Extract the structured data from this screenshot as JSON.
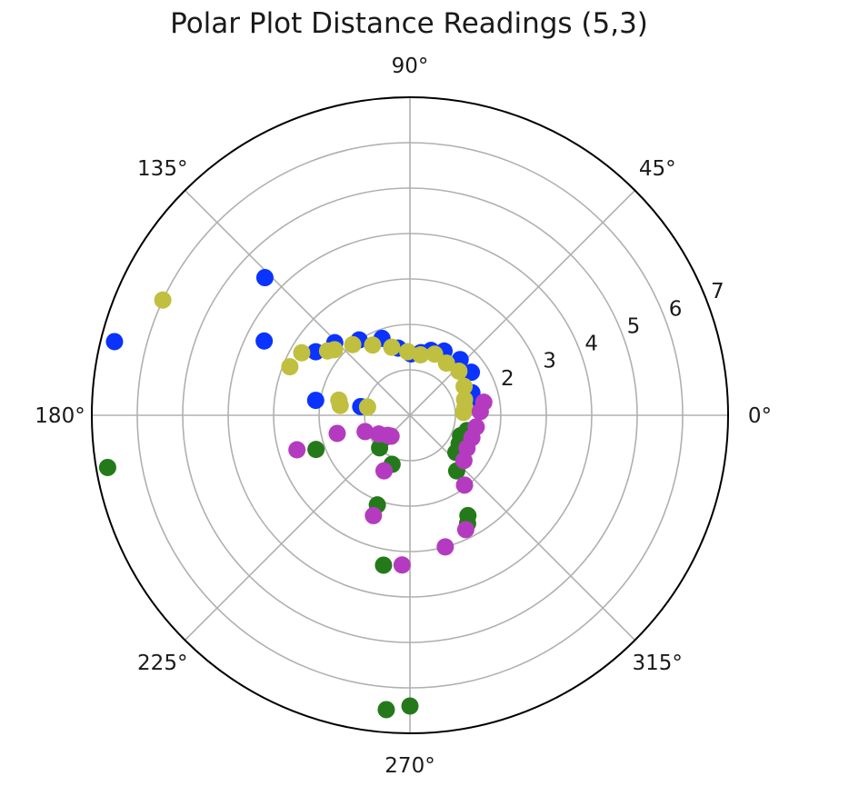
{
  "chart_data": {
    "type": "scatter",
    "projection": "polar",
    "title": "Polar Plot Distance Readings (5,3)",
    "theta_unit": "degrees",
    "r_range": [
      0,
      7
    ],
    "r_ticks": [
      2,
      3,
      4,
      5,
      6,
      7
    ],
    "r_tick_labels": [
      "2",
      "3",
      "4",
      "5",
      "6",
      "7"
    ],
    "r_tick_label_angle_deg": 22.5,
    "theta_ticks": [
      0,
      45,
      90,
      135,
      180,
      225,
      270,
      315
    ],
    "theta_tick_labels": [
      "0°",
      "45°",
      "90°",
      "135°",
      "180°",
      "225°",
      "270°",
      "315°"
    ],
    "grid": true,
    "legend": "none",
    "series": [
      {
        "color": "#0a33ff",
        "points": [
          {
            "theta": 136.5,
            "r": 4.4
          },
          {
            "theta": 166,
            "r": 6.7
          },
          {
            "theta": 153,
            "r": 3.6
          },
          {
            "theta": 146,
            "r": 2.5
          },
          {
            "theta": 136,
            "r": 2.3
          },
          {
            "theta": 124,
            "r": 2.0
          },
          {
            "theta": 110,
            "r": 1.8
          },
          {
            "theta": 100,
            "r": 1.5
          },
          {
            "theta": 89,
            "r": 1.35
          },
          {
            "theta": 80,
            "r": 1.4
          },
          {
            "theta": 72,
            "r": 1.5
          },
          {
            "theta": 62,
            "r": 1.6
          },
          {
            "theta": 48,
            "r": 1.65
          },
          {
            "theta": 35,
            "r": 1.65
          },
          {
            "theta": 20,
            "r": 1.45
          },
          {
            "theta": 10,
            "r": 1.35
          },
          {
            "theta": 171,
            "r": 2.1
          },
          {
            "theta": 170,
            "r": 1.1
          }
        ]
      },
      {
        "color": "#c0bf3f",
        "points": [
          {
            "theta": 155,
            "r": 6.0
          },
          {
            "theta": 150,
            "r": 2.75
          },
          {
            "theta": 158,
            "r": 2.85
          },
          {
            "theta": 142,
            "r": 2.3
          },
          {
            "theta": 139,
            "r": 2.2
          },
          {
            "theta": 129,
            "r": 2.0
          },
          {
            "theta": 118,
            "r": 1.75
          },
          {
            "theta": 105,
            "r": 1.55
          },
          {
            "theta": 92,
            "r": 1.4
          },
          {
            "theta": 80,
            "r": 1.35
          },
          {
            "theta": 68,
            "r": 1.45
          },
          {
            "theta": 55,
            "r": 1.4
          },
          {
            "theta": 42,
            "r": 1.45
          },
          {
            "theta": 28,
            "r": 1.35
          },
          {
            "theta": 16,
            "r": 1.25
          },
          {
            "theta": 8,
            "r": 1.22
          },
          {
            "theta": 3,
            "r": 1.18
          },
          {
            "theta": 172,
            "r": 1.55
          },
          {
            "theta": 168,
            "r": 1.6
          },
          {
            "theta": 169,
            "r": 0.95
          }
        ]
      },
      {
        "color": "#247a1a",
        "points": [
          {
            "theta": 189.8,
            "r": 6.75
          },
          {
            "theta": 265.4,
            "r": 6.5
          },
          {
            "theta": 270,
            "r": 6.4
          },
          {
            "theta": 260,
            "r": 3.35
          },
          {
            "theta": 250,
            "r": 2.1
          },
          {
            "theta": 227,
            "r": 0.98
          },
          {
            "theta": 250,
            "r": 1.15
          },
          {
            "theta": 200,
            "r": 2.2
          },
          {
            "theta": 221,
            "r": 0.78
          },
          {
            "theta": 321,
            "r": 1.3
          },
          {
            "theta": 330,
            "r": 1.25
          },
          {
            "theta": 310,
            "r": 1.6
          },
          {
            "theta": 300,
            "r": 2.55
          },
          {
            "theta": 298,
            "r": 2.7
          },
          {
            "theta": 338,
            "r": 1.2
          },
          {
            "theta": 345,
            "r": 1.3
          }
        ]
      },
      {
        "color": "#b43bbf",
        "points": [
          {
            "theta": 197,
            "r": 2.6
          },
          {
            "theta": 194,
            "r": 1.65
          },
          {
            "theta": 200,
            "r": 1.05
          },
          {
            "theta": 211,
            "r": 0.8
          },
          {
            "theta": 228,
            "r": 0.62
          },
          {
            "theta": 222,
            "r": 0.66
          },
          {
            "theta": 245,
            "r": 1.35
          },
          {
            "theta": 250,
            "r": 2.35
          },
          {
            "theta": 267,
            "r": 3.3
          },
          {
            "theta": 285,
            "r": 3.0
          },
          {
            "theta": 296,
            "r": 2.8
          },
          {
            "theta": 308,
            "r": 1.95
          },
          {
            "theta": 320,
            "r": 1.55
          },
          {
            "theta": 330,
            "r": 1.45
          },
          {
            "theta": 340,
            "r": 1.45
          },
          {
            "theta": 350,
            "r": 1.48
          },
          {
            "theta": 3,
            "r": 1.55
          },
          {
            "theta": 10,
            "r": 1.65
          }
        ]
      }
    ]
  }
}
